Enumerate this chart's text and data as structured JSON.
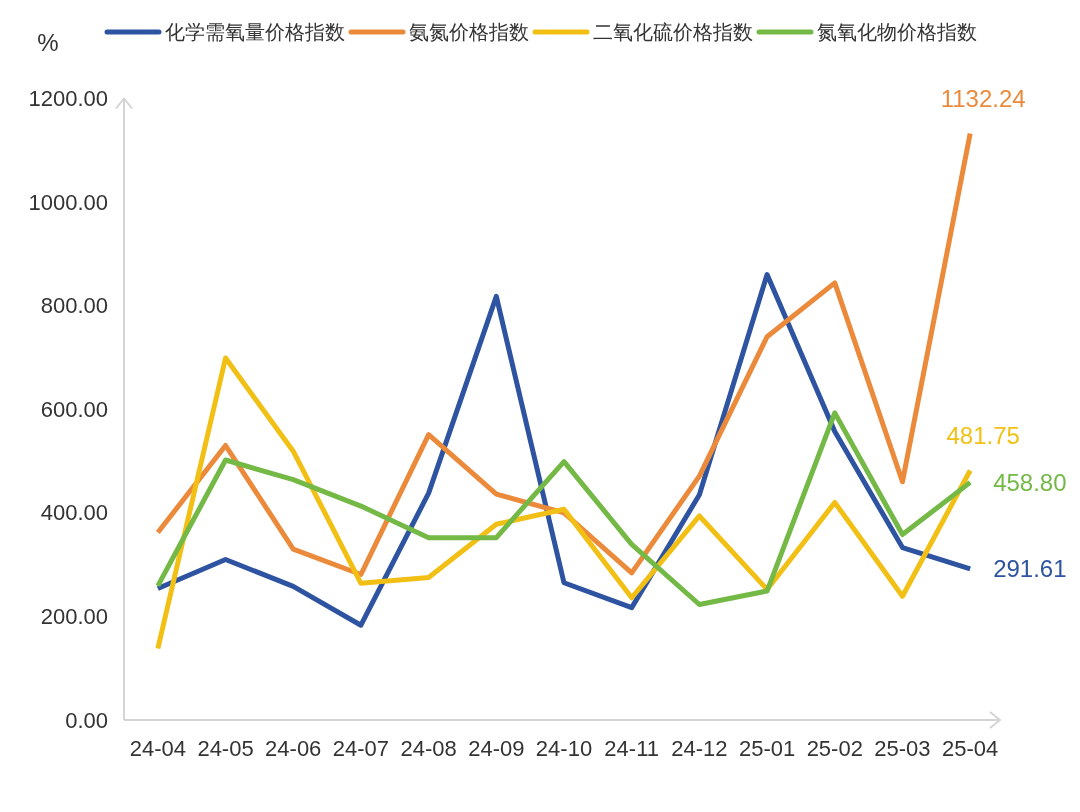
{
  "chart_data": {
    "type": "line",
    "ylabel": "%",
    "categories": [
      "24-04",
      "24-05",
      "24-06",
      "24-07",
      "24-08",
      "24-09",
      "24-10",
      "24-11",
      "24-12",
      "25-01",
      "25-02",
      "25-03",
      "25-04"
    ],
    "series": [
      {
        "name": "化学需氧量价格指数",
        "color": "#2e54a1",
        "values": [
          254,
          310,
          258,
          183,
          438,
          818,
          265,
          217,
          435,
          860,
          557,
          333,
          291.61
        ],
        "value_labels": [
          null,
          null,
          null,
          null,
          null,
          null,
          null,
          null,
          null,
          null,
          null,
          null,
          "291.61"
        ]
      },
      {
        "name": "氨氮价格指数",
        "color": "#ec8a3b",
        "values": [
          362,
          530,
          330,
          281,
          551,
          436,
          400,
          284,
          471,
          740,
          844,
          460,
          1132.24
        ],
        "value_labels": [
          null,
          null,
          null,
          null,
          null,
          null,
          null,
          null,
          null,
          null,
          null,
          null,
          "1132.24"
        ]
      },
      {
        "name": "二氧化硫价格指数",
        "color": "#f2c014",
        "values": [
          138,
          699,
          519,
          264,
          275,
          378,
          407,
          236,
          394,
          252,
          420,
          239,
          481.75
        ],
        "value_labels": [
          null,
          null,
          null,
          null,
          null,
          null,
          null,
          null,
          null,
          null,
          null,
          null,
          "481.75"
        ]
      },
      {
        "name": "氮氧化物价格指数",
        "color": "#74b946",
        "values": [
          259,
          502,
          464,
          413,
          352,
          352,
          499,
          339,
          223,
          249,
          593,
          358,
          458.8
        ],
        "value_labels": [
          null,
          null,
          null,
          null,
          null,
          null,
          null,
          null,
          null,
          null,
          null,
          null,
          "458.80"
        ]
      }
    ],
    "ylim": [
      0,
      1200
    ],
    "yticks": [
      {
        "value": 0,
        "label": "0.00"
      },
      {
        "value": 200,
        "label": "200.00"
      },
      {
        "value": 400,
        "label": "400.00"
      },
      {
        "value": 600,
        "label": "600.00"
      },
      {
        "value": 800,
        "label": "800.00"
      },
      {
        "value": 1000,
        "label": "1000.00"
      },
      {
        "value": 1200,
        "label": "1200.00"
      }
    ],
    "grid": false,
    "legend": "top",
    "marker": "none",
    "line_style": "solid"
  }
}
